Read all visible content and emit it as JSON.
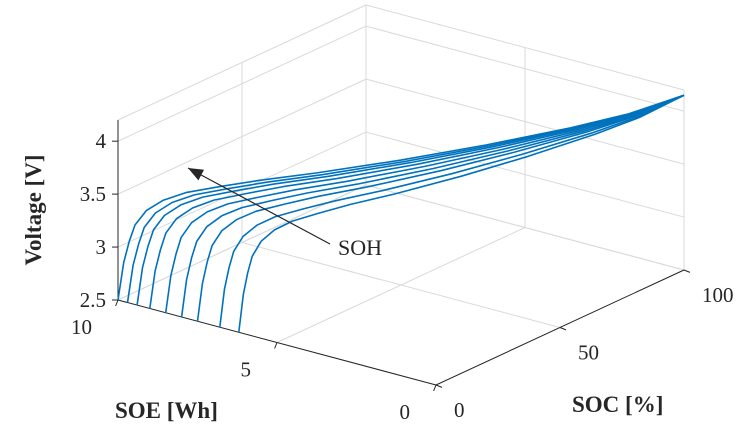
{
  "chart_data": {
    "type": "line",
    "projection": "3d",
    "title": "",
    "xlabel": "SOC [%]",
    "ylabel": "SOE [Wh]",
    "zlabel": "Voltage [V]",
    "xlim": [
      0,
      100
    ],
    "ylim": [
      0,
      10
    ],
    "zlim": [
      2.5,
      4.2
    ],
    "xticks": [
      "0",
      "50",
      "100"
    ],
    "yticks": [
      "0",
      "5",
      "10"
    ],
    "zticks": [
      "2.5",
      "3",
      "3.5",
      "4"
    ],
    "grid": true,
    "line_color": "#0072bd",
    "annotation": {
      "text": "SOH",
      "arrow_direction": "toward higher SOE"
    },
    "series_shape": {
      "soc": [
        0,
        1,
        2,
        3,
        5,
        8,
        12,
        18,
        25,
        35,
        50,
        65,
        80,
        90,
        100
      ],
      "voltage": [
        2.5,
        2.85,
        3.05,
        3.2,
        3.33,
        3.42,
        3.48,
        3.52,
        3.56,
        3.6,
        3.68,
        3.78,
        3.9,
        4.0,
        4.15
      ]
    },
    "series": [
      {
        "soe_max": 10.0
      },
      {
        "soe_max": 9.7
      },
      {
        "soe_max": 9.4
      },
      {
        "soe_max": 9.0
      },
      {
        "soe_max": 8.5
      },
      {
        "soe_max": 8.0
      },
      {
        "soe_max": 7.5
      },
      {
        "soe_max": 6.8
      },
      {
        "soe_max": 6.2
      }
    ]
  }
}
